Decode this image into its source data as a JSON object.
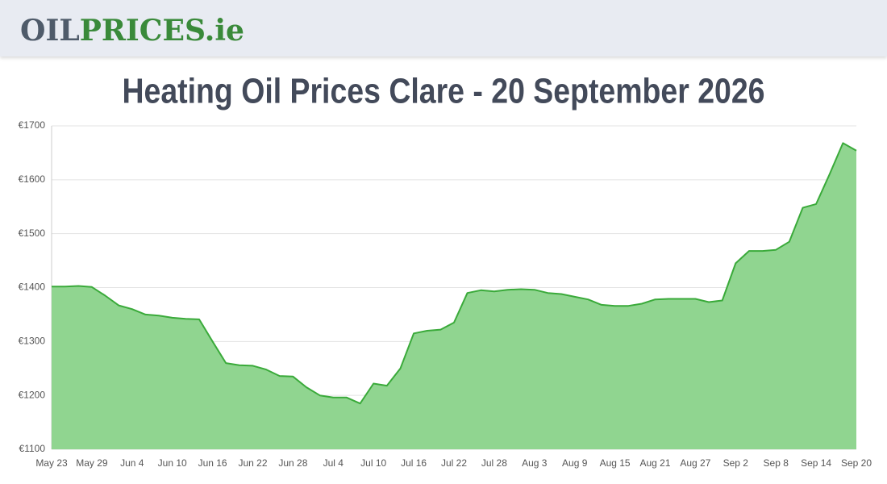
{
  "header": {
    "logo_parts": [
      "OIL",
      "PRICES.ie"
    ]
  },
  "chart_data": {
    "type": "area",
    "title": "Heating Oil Prices Clare - 20 September 2026",
    "categories": [
      "May 23",
      null,
      null,
      "May 29",
      null,
      null,
      "Jun 4",
      null,
      null,
      "Jun 10",
      null,
      null,
      "Jun 16",
      null,
      null,
      "Jun 22",
      null,
      null,
      "Jun 28",
      null,
      null,
      "Jul 4",
      null,
      null,
      "Jul 10",
      null,
      null,
      "Jul 16",
      null,
      null,
      "Jul 22",
      null,
      null,
      "Jul 28",
      null,
      null,
      "Aug 3",
      null,
      null,
      "Aug 9",
      null,
      null,
      "Aug 15",
      null,
      null,
      "Aug 21",
      null,
      null,
      "Aug 27",
      null,
      null,
      "Sep 2",
      null,
      null,
      "Sep 8",
      null,
      null,
      "Sep 14",
      null,
      null,
      "Sep 20"
    ],
    "series": [
      {
        "color": "#3aaa3a",
        "fill": "#90d590",
        "values": [
          1402,
          1402,
          1403,
          1401,
          1385,
          1367,
          1360,
          1350,
          1348,
          1344,
          1342,
          1341,
          1300,
          1260,
          1256,
          1255,
          1248,
          1236,
          1235,
          1215,
          1200,
          1196,
          1196,
          1185,
          1222,
          1218,
          1250,
          1315,
          1320,
          1322,
          1335,
          1390,
          1395,
          1393,
          1396,
          1397,
          1396,
          1390,
          1388,
          1383,
          1378,
          1368,
          1366,
          1366,
          1370,
          1378,
          1379,
          1379,
          1379,
          1373,
          1376,
          1445,
          1468,
          1468,
          1470,
          1485,
          1548,
          1555,
          1610,
          1668,
          1654
        ]
      }
    ],
    "ylim": [
      1100,
      1700
    ],
    "yticks": [
      {
        "value": 1100,
        "label": "€1100"
      },
      {
        "value": 1200,
        "label": "€1200"
      },
      {
        "value": 1300,
        "label": "€1300"
      },
      {
        "value": 1400,
        "label": "€1400"
      },
      {
        "value": 1500,
        "label": "€1500"
      },
      {
        "value": 1600,
        "label": "€1600"
      },
      {
        "value": 1700,
        "label": "€1700"
      }
    ],
    "grid": true
  }
}
